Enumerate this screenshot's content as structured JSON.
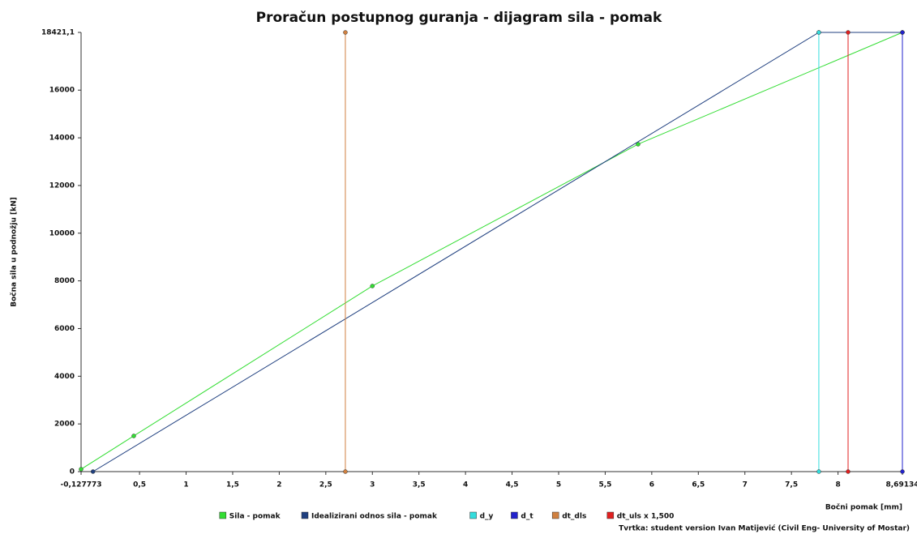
{
  "chart_data": {
    "type": "line",
    "title": "Proračun postupnog guranja - dijagram sila - pomak",
    "x_label": "Bočni pomak [mm]",
    "y_label": "Bočna sila u podnožju [kN]",
    "footer": "Tvrtka: student version Ivan Matijević (Civil Eng- University of Mostar)",
    "xlim": [
      -0.127773,
      8.69134
    ],
    "ylim": [
      0,
      18421.1
    ],
    "xticks": [
      {
        "value": -0.127773,
        "label": "-0,127773"
      },
      {
        "value": 0.5,
        "label": "0,5"
      },
      1,
      {
        "value": 1.5,
        "label": "1,5"
      },
      2,
      {
        "value": 2.5,
        "label": "2,5"
      },
      3,
      {
        "value": 3.5,
        "label": "3,5"
      },
      4,
      {
        "value": 4.5,
        "label": "4,5"
      },
      5,
      {
        "value": 5.5,
        "label": "5,5"
      },
      6,
      {
        "value": 6.5,
        "label": "6,5"
      },
      7,
      {
        "value": 7.5,
        "label": "7,5"
      },
      8,
      {
        "value": 8.69134,
        "label": "8,69134"
      }
    ],
    "yticks": [
      0,
      2000,
      4000,
      6000,
      8000,
      10000,
      12000,
      14000,
      16000,
      {
        "value": 18421.1,
        "label": "18421,1"
      }
    ],
    "grid": false,
    "legend": "bottom",
    "series": [
      {
        "name": "Sila - pomak",
        "color": "#33dd33",
        "x": [
          -0.127773,
          0.438,
          3.0,
          5.853,
          8.69134
        ],
        "values": [
          100,
          1496,
          7784,
          13732,
          18421.1
        ]
      },
      {
        "name": "Idealizirani odnos sila - pomak",
        "color": "#1f3f7f",
        "x": [
          0,
          7.794,
          8.69134
        ],
        "values": [
          0,
          18421.1,
          18421.1
        ]
      },
      {
        "name": "d_y",
        "color": "#33dddd",
        "x": [
          7.794,
          7.794
        ],
        "values": [
          0,
          18421.1
        ]
      },
      {
        "name": "d_t",
        "color": "#2222cc",
        "x": [
          8.69134,
          8.69134
        ],
        "values": [
          0,
          18421.1
        ]
      },
      {
        "name": "dt_dls",
        "color": "#d08040",
        "x": [
          2.71,
          2.71
        ],
        "values": [
          0,
          18421.1
        ]
      },
      {
        "name": "dt_uls x 1,500",
        "color": "#e02020",
        "x": [
          8.108,
          8.108
        ],
        "values": [
          0,
          18421.1
        ]
      }
    ]
  }
}
